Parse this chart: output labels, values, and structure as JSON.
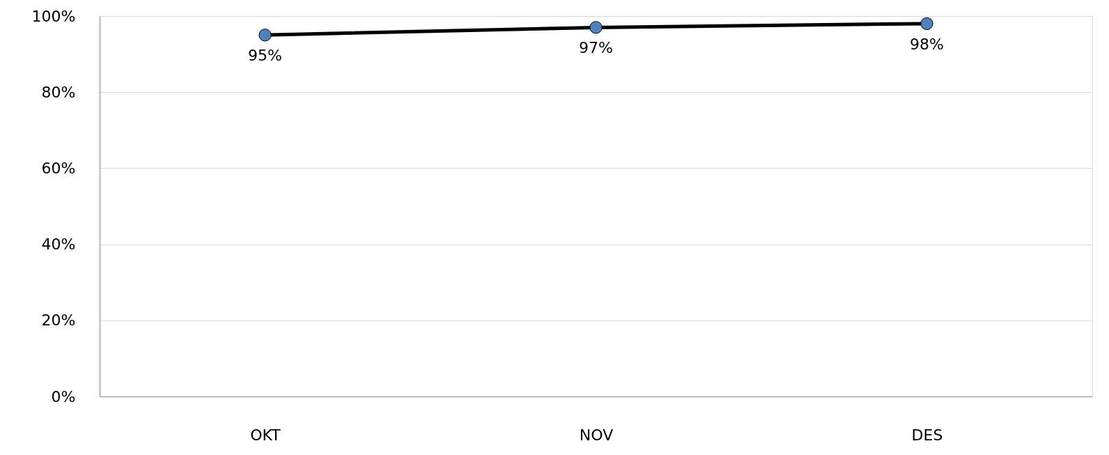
{
  "chart_data": {
    "type": "line",
    "categories": [
      "OKT",
      "NOV",
      "DES"
    ],
    "series": [
      {
        "color": "#000000",
        "colors": [
          "#4f81bd",
          "#4f81bd",
          "#4f81bd"
        ],
        "values": [
          95,
          97,
          98
        ],
        "value_labels": [
          "95%",
          "97%",
          "98%"
        ]
      }
    ],
    "ylim": [
      0,
      100
    ],
    "yticks": [
      {
        "value": 0,
        "label": "0%"
      },
      {
        "value": 20,
        "label": "20%"
      },
      {
        "value": 40,
        "label": "40%"
      },
      {
        "value": 60,
        "label": "60%"
      },
      {
        "value": 80,
        "label": "80%"
      },
      {
        "value": 100,
        "label": "100%"
      }
    ],
    "grid": "y",
    "marker": "circle"
  }
}
